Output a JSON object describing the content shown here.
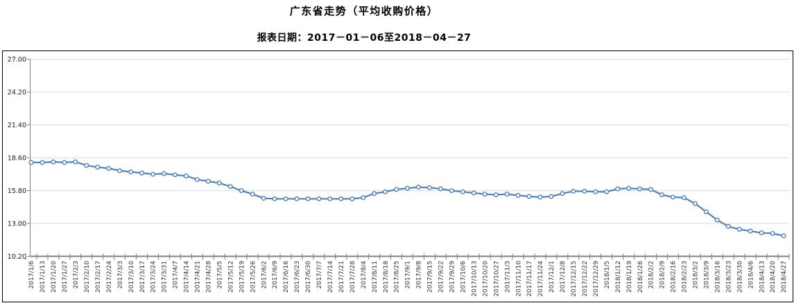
{
  "header": {
    "title": "广东省走势（平均收购价格）",
    "subtitle": "报表日期：2017－01－06至2018－04－27"
  },
  "chart_data": {
    "type": "line",
    "title": "广东省走势（平均收购价格）",
    "subtitle": "报表日期：2017－01－06至2018－04－27",
    "xlabel": "",
    "ylabel": "",
    "grid": "horizontal",
    "legend": "none",
    "ylim": [
      10.2,
      27.0
    ],
    "ytick_step": 2.8,
    "yticks": [
      "27.00",
      "24.20",
      "21.40",
      "18.60",
      "15.80",
      "13.00",
      "10.20"
    ],
    "line_color": "#4f81bd",
    "marker_style": "open-circle",
    "gridline_color": "#d9d9d9",
    "axis_color": "#808080",
    "border_color": "#000000",
    "x": [
      "2017/1/6",
      "2017/1/13",
      "2017/1/20",
      "2017/1/27",
      "2017/2/3",
      "2017/2/10",
      "2017/2/17",
      "2017/2/24",
      "2017/3/3",
      "2017/3/10",
      "2017/3/17",
      "2017/3/24",
      "2017/3/31",
      "2017/4/7",
      "2017/4/14",
      "2017/4/21",
      "2017/4/28",
      "2017/5/5",
      "2017/5/12",
      "2017/5/19",
      "2017/5/26",
      "2017/6/2",
      "2017/6/9",
      "2017/6/16",
      "2017/6/23",
      "2017/6/30",
      "2017/7/7",
      "2017/7/14",
      "2017/7/21",
      "2017/7/28",
      "2017/8/4",
      "2017/8/11",
      "2017/8/18",
      "2017/8/25",
      "2017/9/1",
      "2017/9/8",
      "2017/9/15",
      "2017/9/22",
      "2017/9/29",
      "2017/10/6",
      "2017/10/13",
      "2017/10/20",
      "2017/10/27",
      "2017/11/3",
      "2017/11/10",
      "2017/11/17",
      "2017/11/24",
      "2017/12/1",
      "2017/12/8",
      "2017/12/15",
      "2017/12/22",
      "2017/12/29",
      "2018/1/5",
      "2018/1/12",
      "2018/1/19",
      "2018/1/26",
      "2018/2/2",
      "2018/2/9",
      "2018/2/16",
      "2018/2/23",
      "2018/3/2",
      "2018/3/9",
      "2018/3/16",
      "2018/3/23",
      "2018/3/30",
      "2018/4/6",
      "2018/4/13",
      "2018/4/20",
      "2018/4/27"
    ],
    "series": [
      {
        "name": "平均收购价格",
        "values": [
          18.2,
          18.2,
          18.25,
          18.2,
          18.25,
          17.95,
          17.8,
          17.7,
          17.5,
          17.4,
          17.3,
          17.2,
          17.25,
          17.15,
          17.05,
          16.75,
          16.6,
          16.45,
          16.15,
          15.8,
          15.5,
          15.15,
          15.1,
          15.1,
          15.1,
          15.1,
          15.1,
          15.1,
          15.1,
          15.1,
          15.2,
          15.55,
          15.7,
          15.9,
          16.0,
          16.1,
          16.05,
          15.95,
          15.8,
          15.7,
          15.6,
          15.5,
          15.45,
          15.5,
          15.4,
          15.3,
          15.25,
          15.3,
          15.55,
          15.75,
          15.75,
          15.7,
          15.7,
          15.95,
          16.0,
          15.95,
          15.9,
          15.45,
          15.25,
          15.2,
          14.7,
          14.0,
          13.3,
          12.75,
          12.5,
          12.35,
          12.2,
          12.15,
          11.95
        ]
      }
    ]
  }
}
